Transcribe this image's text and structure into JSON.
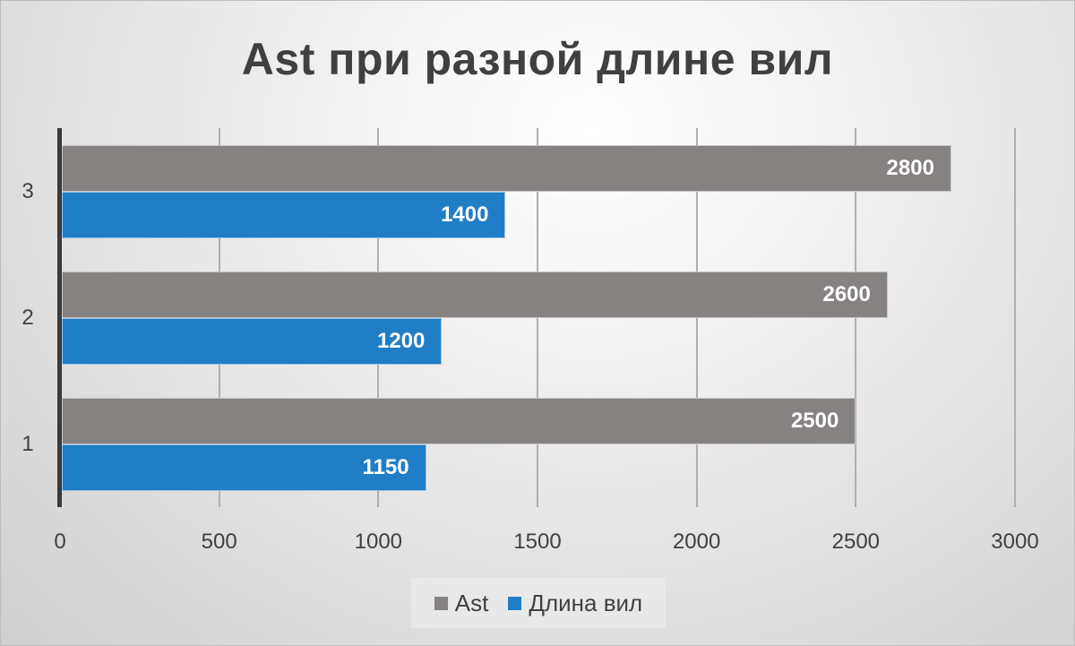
{
  "chart": {
    "title": "Ast при разной длине вил",
    "colors": {
      "ast": "#868281",
      "length": "#1f7ec6"
    },
    "legend": [
      {
        "label": "Ast",
        "color": "#868281"
      },
      {
        "label": "Длина вил",
        "color": "#1f7ec6"
      }
    ],
    "x_ticks": [
      "0",
      "500",
      "1000",
      "1500",
      "2000",
      "2500",
      "3000"
    ],
    "y_ticks": [
      "1",
      "2",
      "3"
    ]
  },
  "chart_data": {
    "type": "bar",
    "orientation": "horizontal",
    "title": "Ast при разной длине вил",
    "categories": [
      "1",
      "2",
      "3"
    ],
    "series": [
      {
        "name": "Ast",
        "values": [
          2500,
          2600,
          2800
        ],
        "color": "#868281"
      },
      {
        "name": "Длина вил",
        "values": [
          1150,
          1200,
          1400
        ],
        "color": "#1f7ec6"
      }
    ],
    "xlabel": "",
    "ylabel": "",
    "xlim": [
      0,
      3000
    ],
    "x_ticks": [
      0,
      500,
      1000,
      1500,
      2000,
      2500,
      3000
    ],
    "grid": "vertical",
    "data_labels": true,
    "legend_position": "bottom"
  }
}
